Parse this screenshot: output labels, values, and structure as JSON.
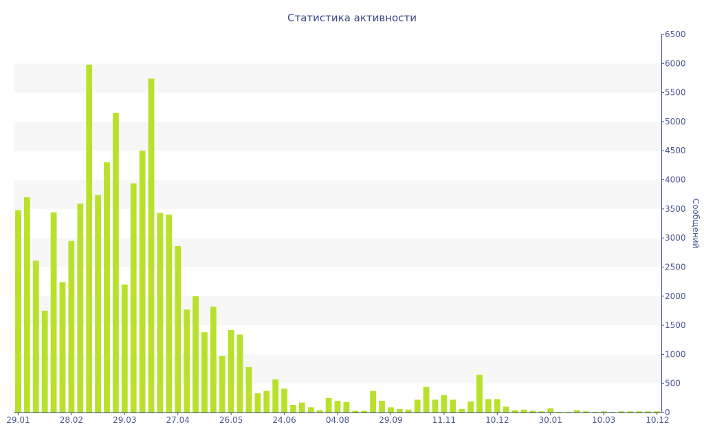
{
  "chart_data": {
    "type": "bar",
    "title": "Статистика активности",
    "ylabel": "Сообщений",
    "xlabel": "",
    "ylim": [
      0,
      6500
    ],
    "yticks": [
      0,
      500,
      1000,
      1500,
      2000,
      2500,
      3000,
      3500,
      4000,
      4500,
      5000,
      5500,
      6000,
      6500
    ],
    "y_axis_side": "right",
    "grid": "alternating horizontal bands",
    "bar_color": "#b8e12b",
    "band_color": "#f7f7f7",
    "axis_color": "#3d4a86",
    "x_tick_labels": [
      "29.01",
      "28.02",
      "29.03",
      "27.04",
      "26.05",
      "24.06",
      "04.08",
      "29.09",
      "11.11",
      "10.12",
      "30.01",
      "10.03",
      "10.12"
    ],
    "x_tick_bar_index": [
      0,
      6,
      12,
      18,
      24,
      30,
      36,
      42,
      48,
      54,
      60,
      66,
      72
    ],
    "values": [
      3480,
      3700,
      2610,
      1750,
      3440,
      2240,
      2950,
      3590,
      5980,
      3740,
      4300,
      5150,
      2200,
      3940,
      4500,
      5740,
      3430,
      3400,
      2860,
      1770,
      2000,
      1380,
      1820,
      970,
      1420,
      1340,
      780,
      330,
      370,
      570,
      410,
      130,
      170,
      90,
      40,
      250,
      200,
      180,
      30,
      30,
      370,
      200,
      90,
      60,
      50,
      220,
      440,
      220,
      300,
      220,
      60,
      190,
      650,
      230,
      230,
      100,
      40,
      50,
      30,
      20,
      70,
      10,
      10,
      40,
      20,
      10,
      20,
      10,
      20,
      20,
      20,
      20,
      20
    ]
  }
}
